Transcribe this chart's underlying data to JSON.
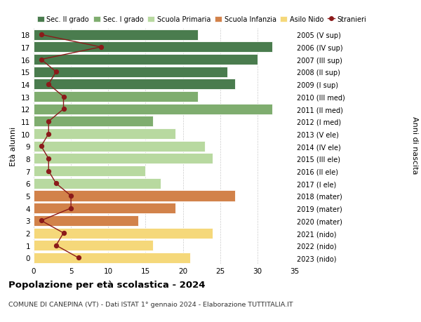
{
  "ages": [
    18,
    17,
    16,
    15,
    14,
    13,
    12,
    11,
    10,
    9,
    8,
    7,
    6,
    5,
    4,
    3,
    2,
    1,
    0
  ],
  "right_labels": [
    "2005 (V sup)",
    "2006 (IV sup)",
    "2007 (III sup)",
    "2008 (II sup)",
    "2009 (I sup)",
    "2010 (III med)",
    "2011 (II med)",
    "2012 (I med)",
    "2013 (V ele)",
    "2014 (IV ele)",
    "2015 (III ele)",
    "2016 (II ele)",
    "2017 (I ele)",
    "2018 (mater)",
    "2019 (mater)",
    "2020 (mater)",
    "2021 (nido)",
    "2022 (nido)",
    "2023 (nido)"
  ],
  "bar_values": [
    22,
    32,
    30,
    26,
    27,
    22,
    32,
    16,
    19,
    23,
    24,
    15,
    17,
    27,
    19,
    14,
    24,
    16,
    21
  ],
  "bar_colors": [
    "#4a7c4e",
    "#4a7c4e",
    "#4a7c4e",
    "#4a7c4e",
    "#4a7c4e",
    "#7fad6f",
    "#7fad6f",
    "#7fad6f",
    "#b8d9a0",
    "#b8d9a0",
    "#b8d9a0",
    "#b8d9a0",
    "#b8d9a0",
    "#d2824a",
    "#d2824a",
    "#d2824a",
    "#f5d87a",
    "#f5d87a",
    "#f5d87a"
  ],
  "stranieri_values": [
    1,
    9,
    1,
    3,
    2,
    4,
    4,
    2,
    2,
    1,
    2,
    2,
    3,
    5,
    5,
    1,
    4,
    3,
    6
  ],
  "legend_labels": [
    "Sec. II grado",
    "Sec. I grado",
    "Scuola Primaria",
    "Scuola Infanzia",
    "Asilo Nido",
    "Stranieri"
  ],
  "legend_colors": [
    "#4a7c4e",
    "#7fad6f",
    "#b8d9a0",
    "#d2824a",
    "#f5d87a",
    "#8b1a1a"
  ],
  "title": "Popolazione per età scolastica - 2024",
  "subtitle": "COMUNE DI CANEPINA (VT) - Dati ISTAT 1° gennaio 2024 - Elaborazione TUTTITALIA.IT",
  "right_ylabel": "Anni di nascita",
  "ylabel": "Età alunni",
  "xlim": [
    0,
    35
  ],
  "xticks": [
    0,
    5,
    10,
    15,
    20,
    25,
    30,
    35
  ],
  "background_color": "#ffffff",
  "grid_color": "#cccccc",
  "stranieri_color": "#8b1a1a"
}
